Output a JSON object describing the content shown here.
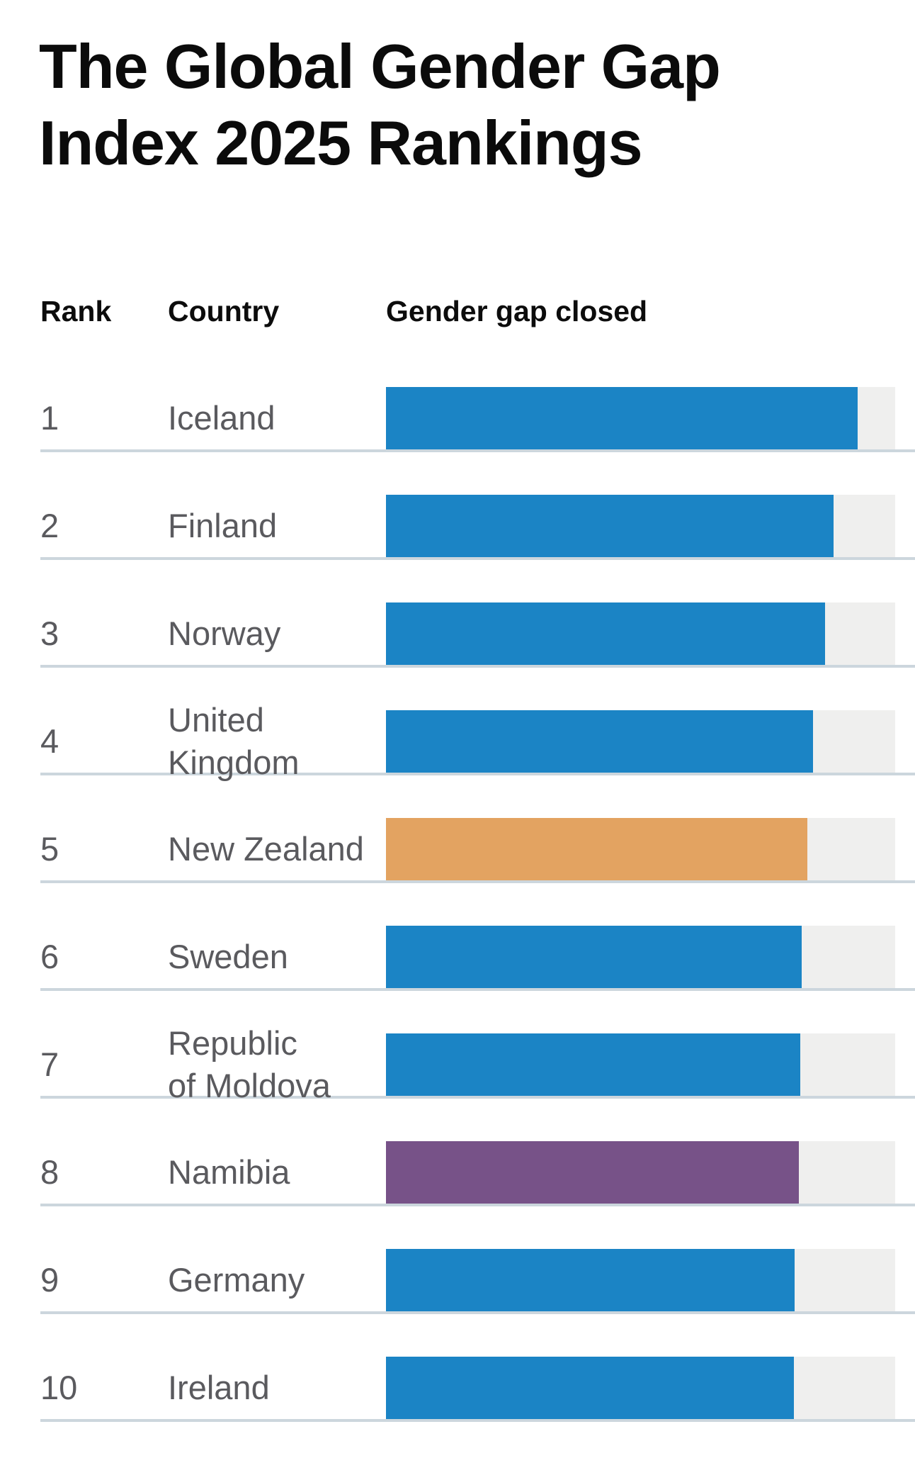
{
  "title": "The Global Gender Gap Index 2025 Rankings",
  "columns": {
    "rank": "Rank",
    "country": "Country",
    "value": "Gender gap closed"
  },
  "colors": {
    "bar_default": "#1b84c5",
    "bar_highlight_orange": "#e3a361",
    "bar_highlight_purple": "#775288",
    "bar_track": "#efefee",
    "row_divider": "#ccd6dd",
    "row_text": "#5a5a5e",
    "heading_text": "#0c0c0c"
  },
  "rows": [
    {
      "rank": "1",
      "country": "Iceland",
      "value_pct": 92.6,
      "bar_color": "#1b84c5"
    },
    {
      "rank": "2",
      "country": "Finland",
      "value_pct": 87.9,
      "bar_color": "#1b84c5"
    },
    {
      "rank": "3",
      "country": "Norway",
      "value_pct": 86.3,
      "bar_color": "#1b84c5"
    },
    {
      "rank": "4",
      "country": "United\nKingdom",
      "value_pct": 83.8,
      "bar_color": "#1b84c5"
    },
    {
      "rank": "5",
      "country": "New Zealand",
      "value_pct": 82.7,
      "bar_color": "#e3a361"
    },
    {
      "rank": "6",
      "country": "Sweden",
      "value_pct": 81.7,
      "bar_color": "#1b84c5"
    },
    {
      "rank": "7",
      "country": "Republic\nof Moldova",
      "value_pct": 81.3,
      "bar_color": "#1b84c5"
    },
    {
      "rank": "8",
      "country": "Namibia",
      "value_pct": 81.1,
      "bar_color": "#775288"
    },
    {
      "rank": "9",
      "country": "Germany",
      "value_pct": 80.3,
      "bar_color": "#1b84c5"
    },
    {
      "rank": "10",
      "country": "Ireland",
      "value_pct": 80.1,
      "bar_color": "#1b84c5"
    }
  ],
  "chart_data": {
    "type": "bar",
    "orientation": "horizontal",
    "title": "The Global Gender Gap Index 2025 Rankings",
    "categories": [
      "Iceland",
      "Finland",
      "Norway",
      "United Kingdom",
      "New Zealand",
      "Sweden",
      "Republic of Moldova",
      "Namibia",
      "Germany",
      "Ireland"
    ],
    "ranks": [
      1,
      2,
      3,
      4,
      5,
      6,
      7,
      8,
      9,
      10
    ],
    "values": [
      92.6,
      87.9,
      86.3,
      83.8,
      82.7,
      81.7,
      81.3,
      81.1,
      80.3,
      80.1
    ],
    "value_label": "Gender gap closed",
    "unit": "%",
    "xlim": [
      0,
      100
    ],
    "bar_colors": [
      "#1b84c5",
      "#1b84c5",
      "#1b84c5",
      "#1b84c5",
      "#e3a361",
      "#1b84c5",
      "#1b84c5",
      "#775288",
      "#1b84c5",
      "#1b84c5"
    ],
    "legend": false,
    "grid": false,
    "data_labels": false
  }
}
